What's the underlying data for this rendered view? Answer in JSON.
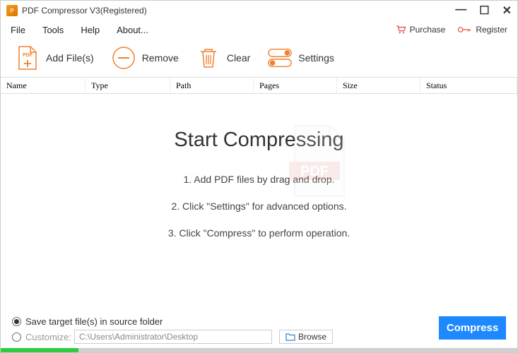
{
  "window": {
    "title": "PDF Compressor V3(Registered)"
  },
  "menu": {
    "file": "File",
    "tools": "Tools",
    "help": "Help",
    "about": "About...",
    "purchase": "Purchase",
    "register": "Register"
  },
  "toolbar": {
    "add": "Add File(s)",
    "remove": "Remove",
    "clear": "Clear",
    "settings": "Settings"
  },
  "columns": {
    "name": "Name",
    "type": "Type",
    "path": "Path",
    "pages": "Pages",
    "size": "Size",
    "status": "Status"
  },
  "main": {
    "heading": "Start Compressing",
    "step1": "1. Add PDF files by drag and drop.",
    "step2": "2. Click \"Settings\" for advanced options.",
    "step3": "3. Click \"Compress\" to perform operation."
  },
  "output": {
    "saveInSource": "Save target file(s) in source folder",
    "customize": "Customize:",
    "path": "C:\\Users\\Administrator\\Desktop",
    "browse": "Browse"
  },
  "action": {
    "compress": "Compress"
  },
  "progress": {
    "percent": 15
  },
  "colors": {
    "accent": "#1e88ff",
    "toolIcon": "#f08030",
    "purchaseIcon": "#e04040",
    "registerIcon": "#e05030",
    "progressFill": "#2ecc40",
    "progressTrack": "#d0d0d0"
  }
}
